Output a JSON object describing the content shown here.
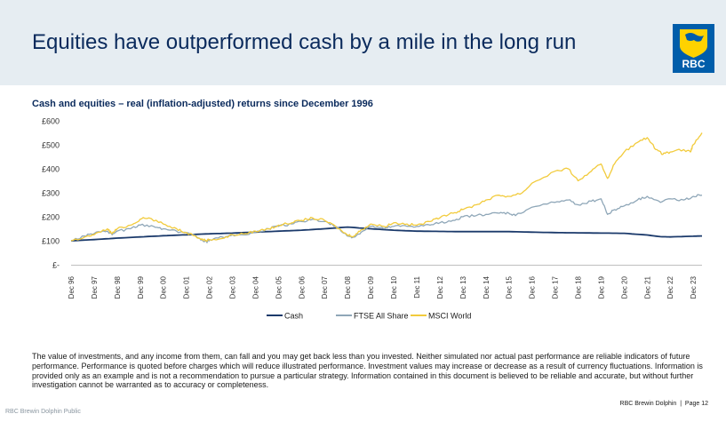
{
  "header": {
    "title": "Equities have outperformed cash by a mile in the long run",
    "logo_text": "RBC"
  },
  "colors": {
    "header_bg": "#e6edf2",
    "navy": "#0a2a5c",
    "cash": "#1b3a6b",
    "ftse": "#8fa7b8",
    "msci": "#f2cb3c",
    "rbc_blue": "#005daa",
    "rbc_gold": "#ffd200"
  },
  "chart_data": {
    "type": "line",
    "title": "Cash and equities – real (inflation-adjusted) returns since December 1996",
    "xlabel": "",
    "ylabel": "",
    "ylim": [
      0,
      600
    ],
    "yticks": [
      0,
      100,
      200,
      300,
      400,
      500,
      600
    ],
    "ytick_labels": [
      "£-",
      "£100",
      "£200",
      "£300",
      "£400",
      "£500",
      "£600"
    ],
    "xticks": [
      "Dec 96",
      "Dec 97",
      "Dec 98",
      "Dec 99",
      "Dec 00",
      "Dec 01",
      "Dec 02",
      "Dec 03",
      "Dec 04",
      "Dec 05",
      "Dec 06",
      "Dec 07",
      "Dec 08",
      "Dec 09",
      "Dec 10",
      "Dec 11",
      "Dec 12",
      "Dec 13",
      "Dec 14",
      "Dec 15",
      "Dec 16",
      "Dec 17",
      "Dec 18",
      "Dec 19",
      "Dec 20",
      "Dec 21",
      "Dec 22",
      "Dec 23"
    ],
    "grid": false,
    "legend": "bottom-center",
    "series": [
      {
        "name": "Cash",
        "color": "#1b3a6b",
        "points": [
          [
            1996.92,
            100
          ],
          [
            1997.92,
            105
          ],
          [
            1998.92,
            111
          ],
          [
            1999.92,
            116
          ],
          [
            2000.92,
            121
          ],
          [
            2001.92,
            125
          ],
          [
            2002.92,
            129
          ],
          [
            2003.92,
            132
          ],
          [
            2004.92,
            136
          ],
          [
            2005.92,
            140
          ],
          [
            2006.92,
            144
          ],
          [
            2007.92,
            150
          ],
          [
            2008.92,
            157
          ],
          [
            2009.92,
            150
          ],
          [
            2010.92,
            144
          ],
          [
            2011.92,
            140
          ],
          [
            2012.92,
            139
          ],
          [
            2013.92,
            138
          ],
          [
            2014.92,
            138
          ],
          [
            2015.92,
            138
          ],
          [
            2016.92,
            136
          ],
          [
            2017.92,
            134
          ],
          [
            2018.92,
            133
          ],
          [
            2019.92,
            132
          ],
          [
            2020.92,
            131
          ],
          [
            2021.92,
            124
          ],
          [
            2022.5,
            117
          ],
          [
            2022.92,
            116
          ],
          [
            2023.92,
            119
          ],
          [
            2024.3,
            120
          ]
        ]
      },
      {
        "name": "FTSE All Share",
        "color": "#8fa7b8",
        "points": [
          [
            1996.92,
            100
          ],
          [
            1997.5,
            120
          ],
          [
            1997.92,
            130
          ],
          [
            1998.5,
            140
          ],
          [
            1998.7,
            125
          ],
          [
            1998.92,
            140
          ],
          [
            1999.5,
            150
          ],
          [
            1999.92,
            165
          ],
          [
            2000.5,
            160
          ],
          [
            2000.92,
            150
          ],
          [
            2001.5,
            140
          ],
          [
            2001.92,
            135
          ],
          [
            2002.5,
            110
          ],
          [
            2002.8,
            95
          ],
          [
            2002.92,
            105
          ],
          [
            2003.5,
            115
          ],
          [
            2003.92,
            125
          ],
          [
            2004.5,
            125
          ],
          [
            2004.92,
            135
          ],
          [
            2005.5,
            150
          ],
          [
            2005.92,
            160
          ],
          [
            2006.5,
            170
          ],
          [
            2006.92,
            180
          ],
          [
            2007.4,
            190
          ],
          [
            2007.92,
            180
          ],
          [
            2008.4,
            160
          ],
          [
            2008.9,
            120
          ],
          [
            2009.2,
            115
          ],
          [
            2009.5,
            135
          ],
          [
            2009.92,
            160
          ],
          [
            2010.5,
            150
          ],
          [
            2010.92,
            160
          ],
          [
            2011.5,
            160
          ],
          [
            2011.92,
            160
          ],
          [
            2012.5,
            165
          ],
          [
            2012.92,
            175
          ],
          [
            2013.5,
            185
          ],
          [
            2013.92,
            200
          ],
          [
            2014.5,
            205
          ],
          [
            2014.92,
            210
          ],
          [
            2015.5,
            215
          ],
          [
            2015.92,
            215
          ],
          [
            2016.2,
            205
          ],
          [
            2016.92,
            240
          ],
          [
            2017.92,
            260
          ],
          [
            2018.5,
            270
          ],
          [
            2018.92,
            250
          ],
          [
            2019.5,
            265
          ],
          [
            2019.92,
            275
          ],
          [
            2020.2,
            210
          ],
          [
            2020.5,
            230
          ],
          [
            2020.92,
            245
          ],
          [
            2021.5,
            270
          ],
          [
            2021.92,
            285
          ],
          [
            2022.5,
            260
          ],
          [
            2022.92,
            275
          ],
          [
            2023.5,
            270
          ],
          [
            2023.92,
            285
          ],
          [
            2024.3,
            290
          ]
        ]
      },
      {
        "name": "MSCI World",
        "color": "#f2cb3c",
        "points": [
          [
            1996.92,
            100
          ],
          [
            1997.5,
            115
          ],
          [
            1997.92,
            125
          ],
          [
            1998.5,
            150
          ],
          [
            1998.7,
            130
          ],
          [
            1998.92,
            150
          ],
          [
            1999.5,
            165
          ],
          [
            1999.92,
            190
          ],
          [
            2000.3,
            195
          ],
          [
            2000.92,
            170
          ],
          [
            2001.5,
            150
          ],
          [
            2001.92,
            135
          ],
          [
            2002.5,
            110
          ],
          [
            2002.8,
            100
          ],
          [
            2002.92,
            105
          ],
          [
            2003.5,
            110
          ],
          [
            2003.92,
            125
          ],
          [
            2004.5,
            130
          ],
          [
            2004.92,
            140
          ],
          [
            2005.5,
            150
          ],
          [
            2005.92,
            165
          ],
          [
            2006.5,
            175
          ],
          [
            2006.92,
            185
          ],
          [
            2007.4,
            195
          ],
          [
            2007.92,
            185
          ],
          [
            2008.4,
            160
          ],
          [
            2008.9,
            125
          ],
          [
            2009.2,
            120
          ],
          [
            2009.5,
            145
          ],
          [
            2009.92,
            170
          ],
          [
            2010.5,
            160
          ],
          [
            2010.92,
            175
          ],
          [
            2011.5,
            170
          ],
          [
            2011.92,
            165
          ],
          [
            2012.5,
            180
          ],
          [
            2012.92,
            195
          ],
          [
            2013.5,
            215
          ],
          [
            2013.92,
            230
          ],
          [
            2014.5,
            250
          ],
          [
            2014.92,
            270
          ],
          [
            2015.5,
            290
          ],
          [
            2015.92,
            285
          ],
          [
            2016.5,
            300
          ],
          [
            2016.92,
            340
          ],
          [
            2017.92,
            390
          ],
          [
            2018.5,
            400
          ],
          [
            2018.92,
            350
          ],
          [
            2019.5,
            390
          ],
          [
            2019.92,
            420
          ],
          [
            2020.2,
            360
          ],
          [
            2020.5,
            420
          ],
          [
            2020.92,
            470
          ],
          [
            2021.5,
            510
          ],
          [
            2021.92,
            530
          ],
          [
            2022.3,
            480
          ],
          [
            2022.6,
            460
          ],
          [
            2022.92,
            470
          ],
          [
            2023.5,
            480
          ],
          [
            2023.8,
            470
          ],
          [
            2023.92,
            500
          ],
          [
            2024.3,
            550
          ]
        ]
      }
    ]
  }
}
